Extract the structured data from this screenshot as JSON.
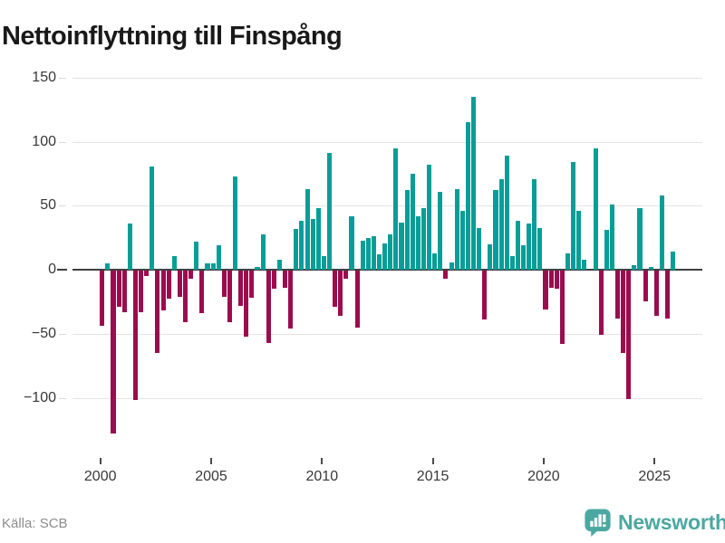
{
  "title": "Nettoinflyttning till Finspång",
  "footer": {
    "source": "Källa: SCB",
    "brand": "Newsworthy"
  },
  "colors": {
    "positive": "#089e97",
    "negative": "#9b0c4e",
    "brand": "#4ba8a1",
    "grid": "#e3e3e3",
    "zero_line": "#3f3f3f",
    "axis_text": "#383838",
    "source_text": "#8c8c8c"
  },
  "chart_data": {
    "type": "bar",
    "title": "Nettoinflyttning till Finspång",
    "xlabel": "",
    "ylabel": "",
    "x_start": "2000Q1",
    "x_end": "2025Q4",
    "ylim": [
      -135,
      155
    ],
    "yticks": [
      150,
      100,
      50,
      0,
      -50,
      -100
    ],
    "xticks": [
      2000,
      2005,
      2010,
      2015,
      2020,
      2025
    ],
    "grid": "horizontal",
    "legend": "none",
    "quarters": [
      [
        "2000Q1",
        -43
      ],
      [
        "2000Q2",
        5
      ],
      [
        "2000Q3",
        -127
      ],
      [
        "2000Q4",
        -28
      ],
      [
        "2001Q1",
        -32
      ],
      [
        "2001Q2",
        36
      ],
      [
        "2001Q3",
        -101
      ],
      [
        "2001Q4",
        -32
      ],
      [
        "2002Q1",
        -4
      ],
      [
        "2002Q2",
        81
      ],
      [
        "2002Q3",
        -64
      ],
      [
        "2002Q4",
        -31
      ],
      [
        "2003Q1",
        -22
      ],
      [
        "2003Q2",
        11
      ],
      [
        "2003Q3",
        -20
      ],
      [
        "2003Q4",
        -40
      ],
      [
        "2004Q1",
        -6
      ],
      [
        "2004Q2",
        22
      ],
      [
        "2004Q3",
        -33
      ],
      [
        "2004Q4",
        5
      ],
      [
        "2005Q1",
        5
      ],
      [
        "2005Q2",
        19
      ],
      [
        "2005Q3",
        -20
      ],
      [
        "2005Q4",
        -40
      ],
      [
        "2006Q1",
        73
      ],
      [
        "2006Q2",
        -27
      ],
      [
        "2006Q3",
        -51
      ],
      [
        "2006Q4",
        -21
      ],
      [
        "2007Q1",
        2
      ],
      [
        "2007Q2",
        28
      ],
      [
        "2007Q3",
        -56
      ],
      [
        "2007Q4",
        -14
      ],
      [
        "2008Q1",
        8
      ],
      [
        "2008Q2",
        -13
      ],
      [
        "2008Q3",
        -45
      ],
      [
        "2008Q4",
        32
      ],
      [
        "2009Q1",
        38
      ],
      [
        "2009Q2",
        63
      ],
      [
        "2009Q3",
        40
      ],
      [
        "2009Q4",
        48
      ],
      [
        "2010Q1",
        11
      ],
      [
        "2010Q2",
        91
      ],
      [
        "2010Q3",
        -28
      ],
      [
        "2010Q4",
        -35
      ],
      [
        "2011Q1",
        -6
      ],
      [
        "2011Q2",
        42
      ],
      [
        "2011Q3",
        -44
      ],
      [
        "2011Q4",
        23
      ],
      [
        "2012Q1",
        25
      ],
      [
        "2012Q2",
        26
      ],
      [
        "2012Q3",
        12
      ],
      [
        "2012Q4",
        21
      ],
      [
        "2013Q1",
        28
      ],
      [
        "2013Q2",
        95
      ],
      [
        "2013Q3",
        37
      ],
      [
        "2013Q4",
        62
      ],
      [
        "2014Q1",
        75
      ],
      [
        "2014Q2",
        42
      ],
      [
        "2014Q3",
        48
      ],
      [
        "2014Q4",
        82
      ],
      [
        "2015Q1",
        13
      ],
      [
        "2015Q2",
        61
      ],
      [
        "2015Q3",
        -6
      ],
      [
        "2015Q4",
        6
      ],
      [
        "2016Q1",
        63
      ],
      [
        "2016Q2",
        46
      ],
      [
        "2016Q3",
        115
      ],
      [
        "2016Q4",
        135
      ],
      [
        "2017Q1",
        33
      ],
      [
        "2017Q2",
        -38
      ],
      [
        "2017Q3",
        20
      ],
      [
        "2017Q4",
        62
      ],
      [
        "2018Q1",
        71
      ],
      [
        "2018Q2",
        89
      ],
      [
        "2018Q3",
        11
      ],
      [
        "2018Q4",
        38
      ],
      [
        "2019Q1",
        19
      ],
      [
        "2019Q2",
        36
      ],
      [
        "2019Q3",
        71
      ],
      [
        "2019Q4",
        33
      ],
      [
        "2020Q1",
        -30
      ],
      [
        "2020Q2",
        -13
      ],
      [
        "2020Q3",
        -14
      ],
      [
        "2020Q4",
        -57
      ],
      [
        "2021Q1",
        13
      ],
      [
        "2021Q2",
        84
      ],
      [
        "2021Q3",
        46
      ],
      [
        "2021Q4",
        8
      ],
      [
        "2022Q1",
        0
      ],
      [
        "2022Q2",
        95
      ],
      [
        "2022Q3",
        -50
      ],
      [
        "2022Q4",
        31
      ],
      [
        "2023Q1",
        51
      ],
      [
        "2023Q2",
        -37
      ],
      [
        "2023Q3",
        -64
      ],
      [
        "2023Q4",
        -100
      ],
      [
        "2024Q1",
        4
      ],
      [
        "2024Q2",
        48
      ],
      [
        "2024Q3",
        -24
      ],
      [
        "2024Q4",
        2
      ],
      [
        "2025Q1",
        -35
      ],
      [
        "2025Q2",
        58
      ],
      [
        "2025Q3",
        -37
      ],
      [
        "2025Q4",
        14
      ]
    ]
  }
}
